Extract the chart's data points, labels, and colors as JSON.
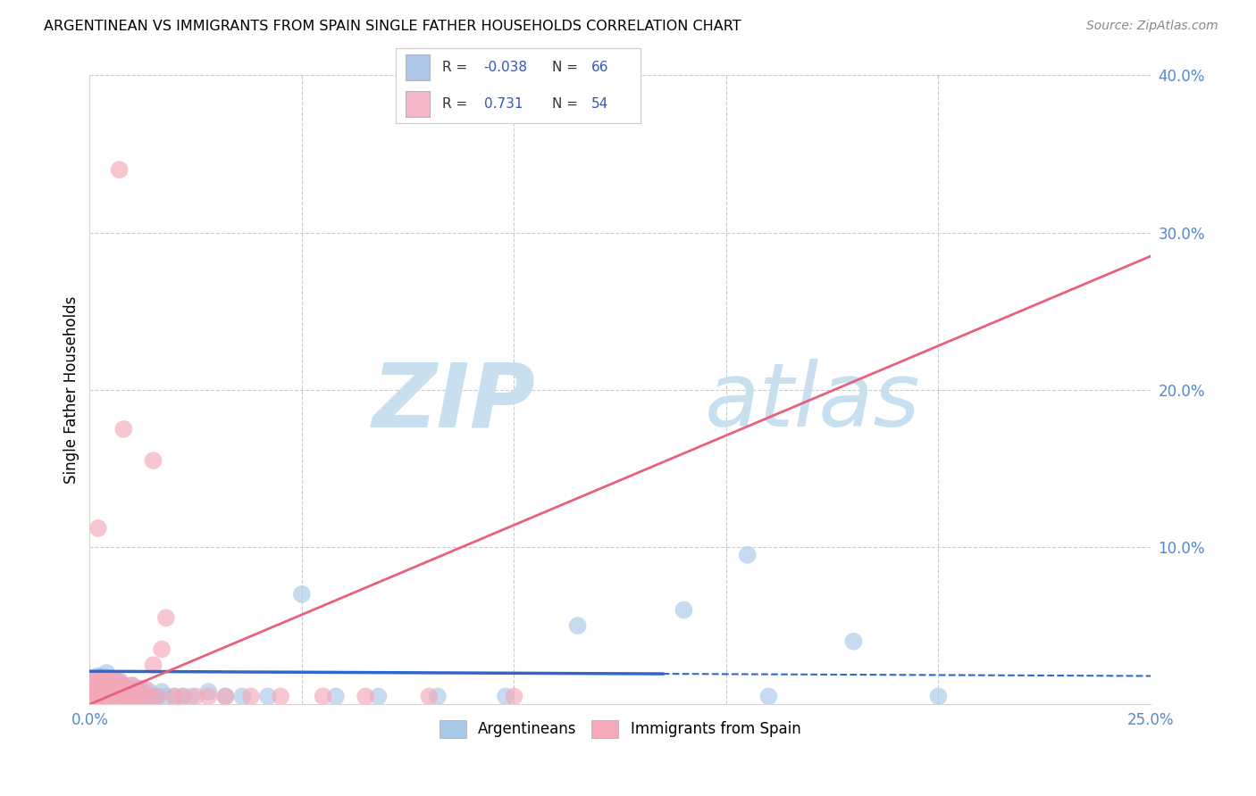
{
  "title": "ARGENTINEAN VS IMMIGRANTS FROM SPAIN SINGLE FATHER HOUSEHOLDS CORRELATION CHART",
  "source": "Source: ZipAtlas.com",
  "ylabel": "Single Father Households",
  "xlim": [
    0.0,
    0.25
  ],
  "ylim": [
    0.0,
    0.4
  ],
  "xticks": [
    0.0,
    0.05,
    0.1,
    0.15,
    0.2,
    0.25
  ],
  "yticks": [
    0.0,
    0.1,
    0.2,
    0.3,
    0.4
  ],
  "xtick_labels": [
    "0.0%",
    "",
    "",
    "",
    "",
    "25.0%"
  ],
  "ytick_labels": [
    "",
    "10.0%",
    "20.0%",
    "30.0%",
    "40.0%"
  ],
  "legend_label1": "Argentineans",
  "legend_label2": "Immigrants from Spain",
  "blue_scatter_color": "#a8c8e8",
  "pink_scatter_color": "#f4a8b8",
  "blue_line_color": "#3366cc",
  "pink_line_color": "#e8607a",
  "watermark_color": "#daeaf8",
  "background_color": "#ffffff",
  "grid_color": "#cccccc",
  "legend_box_color": "#aec6e8",
  "legend_box_color2": "#f4b8c8",
  "tick_color": "#5588cc",
  "blue_x": [
    0.001,
    0.001,
    0.001,
    0.001,
    0.002,
    0.002,
    0.002,
    0.002,
    0.002,
    0.003,
    0.003,
    0.003,
    0.003,
    0.003,
    0.004,
    0.004,
    0.004,
    0.004,
    0.004,
    0.005,
    0.005,
    0.005,
    0.005,
    0.006,
    0.006,
    0.006,
    0.006,
    0.007,
    0.007,
    0.007,
    0.008,
    0.008,
    0.008,
    0.009,
    0.009,
    0.01,
    0.01,
    0.01,
    0.011,
    0.011,
    0.012,
    0.012,
    0.013,
    0.014,
    0.015,
    0.016,
    0.017,
    0.018,
    0.02,
    0.022,
    0.024,
    0.028,
    0.032,
    0.036,
    0.042,
    0.05,
    0.058,
    0.068,
    0.082,
    0.098,
    0.115,
    0.14,
    0.16,
    0.18,
    0.2,
    0.155
  ],
  "blue_y": [
    0.005,
    0.01,
    0.012,
    0.015,
    0.005,
    0.008,
    0.01,
    0.012,
    0.018,
    0.006,
    0.008,
    0.01,
    0.014,
    0.018,
    0.005,
    0.008,
    0.012,
    0.016,
    0.02,
    0.005,
    0.008,
    0.01,
    0.014,
    0.006,
    0.008,
    0.012,
    0.016,
    0.006,
    0.008,
    0.014,
    0.005,
    0.008,
    0.012,
    0.005,
    0.01,
    0.005,
    0.008,
    0.012,
    0.005,
    0.01,
    0.005,
    0.01,
    0.005,
    0.008,
    0.005,
    0.005,
    0.008,
    0.005,
    0.005,
    0.005,
    0.005,
    0.008,
    0.005,
    0.005,
    0.005,
    0.07,
    0.005,
    0.005,
    0.005,
    0.005,
    0.05,
    0.06,
    0.005,
    0.04,
    0.005,
    0.095
  ],
  "pink_x": [
    0.001,
    0.001,
    0.001,
    0.001,
    0.002,
    0.002,
    0.002,
    0.002,
    0.003,
    0.003,
    0.003,
    0.003,
    0.004,
    0.004,
    0.004,
    0.005,
    0.005,
    0.005,
    0.006,
    0.006,
    0.006,
    0.007,
    0.007,
    0.007,
    0.008,
    0.008,
    0.009,
    0.009,
    0.01,
    0.01,
    0.011,
    0.011,
    0.012,
    0.013,
    0.014,
    0.015,
    0.016,
    0.017,
    0.018,
    0.02,
    0.022,
    0.025,
    0.028,
    0.032,
    0.038,
    0.045,
    0.055,
    0.065,
    0.08,
    0.1,
    0.002,
    0.015,
    0.008,
    0.007
  ],
  "pink_y": [
    0.005,
    0.008,
    0.01,
    0.015,
    0.005,
    0.008,
    0.012,
    0.016,
    0.005,
    0.008,
    0.012,
    0.016,
    0.005,
    0.01,
    0.015,
    0.005,
    0.008,
    0.014,
    0.005,
    0.01,
    0.015,
    0.006,
    0.01,
    0.015,
    0.005,
    0.012,
    0.005,
    0.01,
    0.005,
    0.012,
    0.005,
    0.01,
    0.005,
    0.01,
    0.005,
    0.025,
    0.005,
    0.035,
    0.055,
    0.005,
    0.005,
    0.005,
    0.005,
    0.005,
    0.005,
    0.005,
    0.005,
    0.005,
    0.005,
    0.005,
    0.112,
    0.155,
    0.175,
    0.34
  ],
  "blue_line_x": [
    0.0,
    0.25
  ],
  "blue_line_y": [
    0.021,
    0.018
  ],
  "blue_line_solid_end": 0.135,
  "pink_line_x": [
    0.0,
    0.25
  ],
  "pink_line_y": [
    0.0,
    0.285
  ]
}
